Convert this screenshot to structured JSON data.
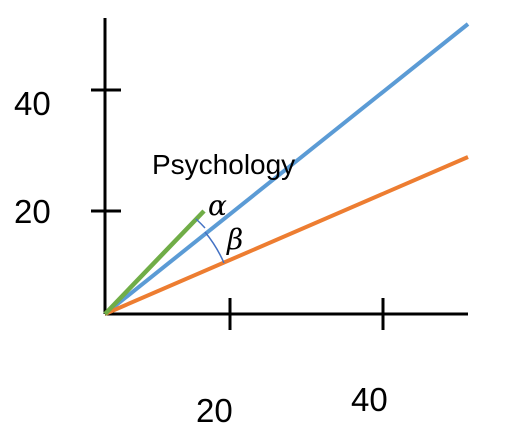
{
  "diagram": {
    "x_ticks": [
      {
        "value": 20,
        "label": "20"
      },
      {
        "value": 40,
        "label": "40"
      }
    ],
    "y_ticks": [
      {
        "value": 20,
        "label": "20"
      },
      {
        "value": 40,
        "label": "40"
      }
    ],
    "vector_label": "Psychology",
    "angle_alpha_label": "α",
    "angle_beta_label": "β",
    "colors": {
      "axis": "#000000",
      "vector_green": "#70ad47",
      "line_blue": "#5b9bd5",
      "line_orange": "#ed7d31",
      "angle_arc": "#4472c4"
    }
  }
}
